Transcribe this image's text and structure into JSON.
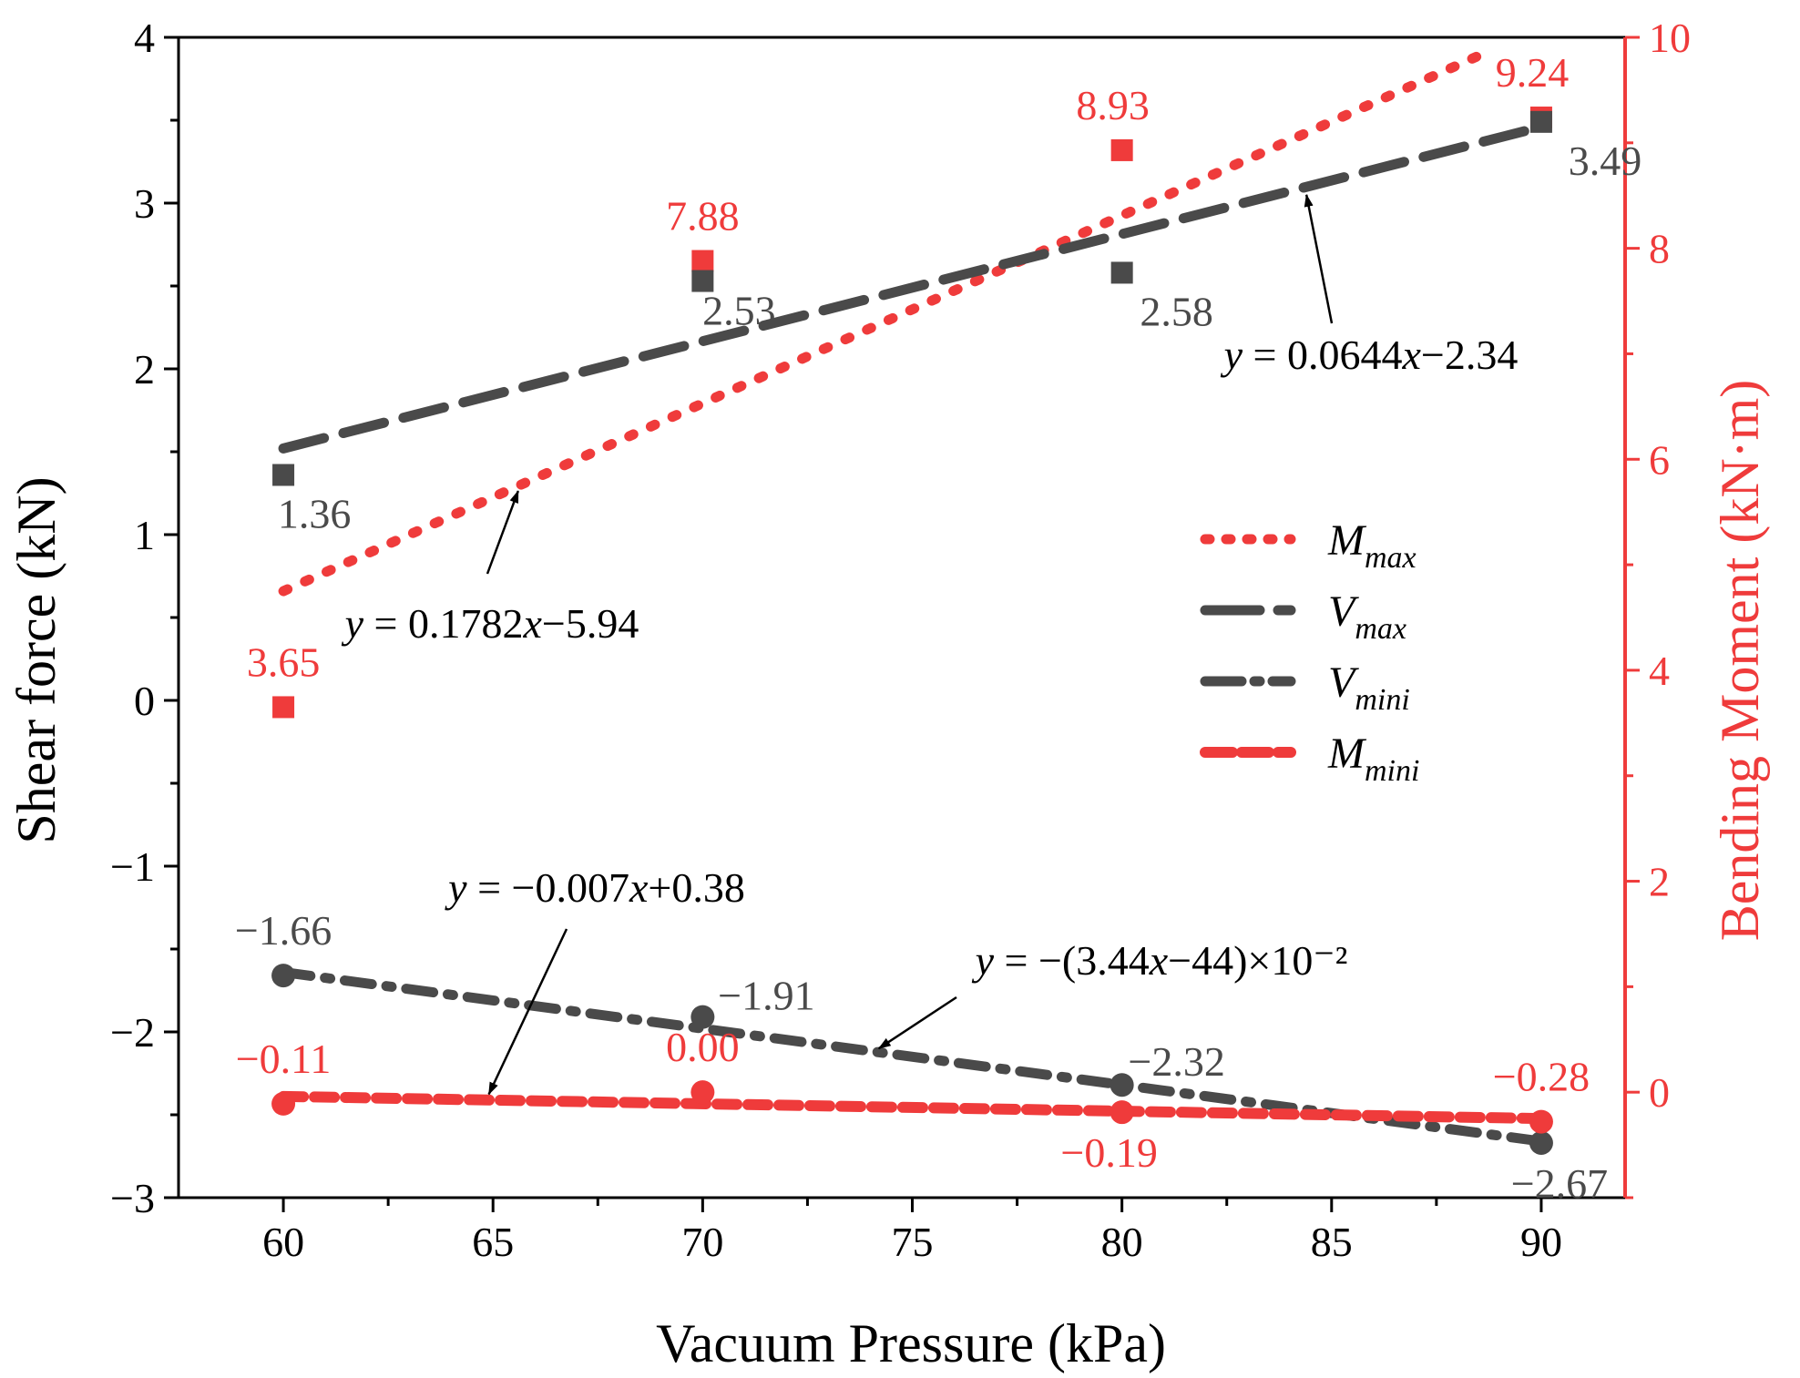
{
  "chart_data": {
    "type": "scatter",
    "xlabel": "Vacuum Pressure (kPa)",
    "ylabel": "Shear force (kN)",
    "y2label": "Bending Moment (kN·m)",
    "xlim": [
      57.5,
      92
    ],
    "ylim": [
      -3,
      4
    ],
    "y2lim": [
      -1,
      10
    ],
    "xticks": [
      60,
      65,
      70,
      75,
      80,
      85,
      90
    ],
    "yticks": [
      -3,
      -2,
      -1,
      0,
      1,
      2,
      3,
      4
    ],
    "y2ticks": [
      0,
      2,
      4,
      6,
      8,
      10
    ],
    "tick_labels": {
      "x": [
        "60",
        "65",
        "70",
        "75",
        "80",
        "85",
        "90"
      ],
      "y": [
        "−3",
        "−2",
        "−1",
        "0",
        "1",
        "2",
        "3",
        "4"
      ],
      "y2": [
        "0",
        "2",
        "4",
        "6",
        "8",
        "10"
      ]
    },
    "colors": {
      "black": "#4a4a4a",
      "red": "#ef3b3b"
    },
    "series": [
      {
        "name": "Mmax",
        "legend_main": "M",
        "legend_sub": "max",
        "axis": "right",
        "color": "#ef3b3b",
        "marker": "square",
        "line_style": "dot",
        "x": [
          60,
          70,
          80,
          90
        ],
        "values": [
          3.65,
          7.88,
          8.93,
          9.24
        ],
        "labels": [
          "3.65",
          "7.88",
          "8.93",
          "9.24"
        ],
        "fit": {
          "equation_text": "y = 0.1782x−5.94",
          "x": [
            60,
            88.7
          ],
          "y": [
            4.75,
            9.86
          ]
        }
      },
      {
        "name": "Vmax",
        "legend_main": "V",
        "legend_sub": "max",
        "axis": "left",
        "color": "#4a4a4a",
        "marker": "square",
        "line_style": "dash",
        "x": [
          60,
          70,
          80,
          90
        ],
        "values": [
          1.36,
          2.53,
          2.58,
          3.49
        ],
        "labels": [
          "1.36",
          "2.53",
          "2.58",
          "3.49"
        ],
        "fit": {
          "equation_text": "y = 0.0644x−2.34",
          "x": [
            60,
            90
          ],
          "y": [
            1.52,
            3.46
          ]
        }
      },
      {
        "name": "Vmini",
        "legend_main": "V",
        "legend_sub": "mini",
        "axis": "left",
        "color": "#4a4a4a",
        "marker": "circle",
        "line_style": "dashdot",
        "x": [
          60,
          70,
          80,
          90
        ],
        "values": [
          -1.66,
          -1.91,
          -2.32,
          -2.67
        ],
        "labels": [
          "−1.66",
          "−1.91",
          "−2.32",
          "−2.67"
        ],
        "fit": {
          "equation_text": "y = −(3.44x−44)×10⁻²",
          "x": [
            60,
            90
          ],
          "y": [
            -1.64,
            -2.66
          ]
        }
      },
      {
        "name": "Mmini",
        "legend_main": "M",
        "legend_sub": "mini",
        "axis": "right",
        "color": "#ef3b3b",
        "marker": "circle",
        "line_style": "shortdash",
        "x": [
          60,
          70,
          80,
          90
        ],
        "values": [
          -0.11,
          0.0,
          -0.19,
          -0.28
        ],
        "labels": [
          "−0.11",
          "0.00",
          "−0.19",
          "−0.28"
        ],
        "fit": {
          "equation_text": "y = −0.007x+0.38",
          "x": [
            60,
            90
          ],
          "y": [
            -0.04,
            -0.25
          ]
        }
      }
    ],
    "annotations": [
      {
        "text": "y = 0.1782x−5.94",
        "series": "Mmax",
        "arrow_to": [
          65.6,
          5.7
        ],
        "axis": "right"
      },
      {
        "text": "y = 0.0644x−2.34",
        "series": "Vmax",
        "arrow_to": [
          84.4,
          3.05
        ],
        "axis": "left"
      },
      {
        "text": "y = −0.007x+0.38",
        "series": "Mmini",
        "arrow_to": [
          64.9,
          -0.02
        ],
        "axis": "right"
      },
      {
        "text": "y = −(3.44x−44)×10⁻²",
        "series": "Vmini",
        "arrow_to": [
          74.2,
          -2.1
        ],
        "axis": "left"
      }
    ],
    "legend_position": "right-middle"
  }
}
